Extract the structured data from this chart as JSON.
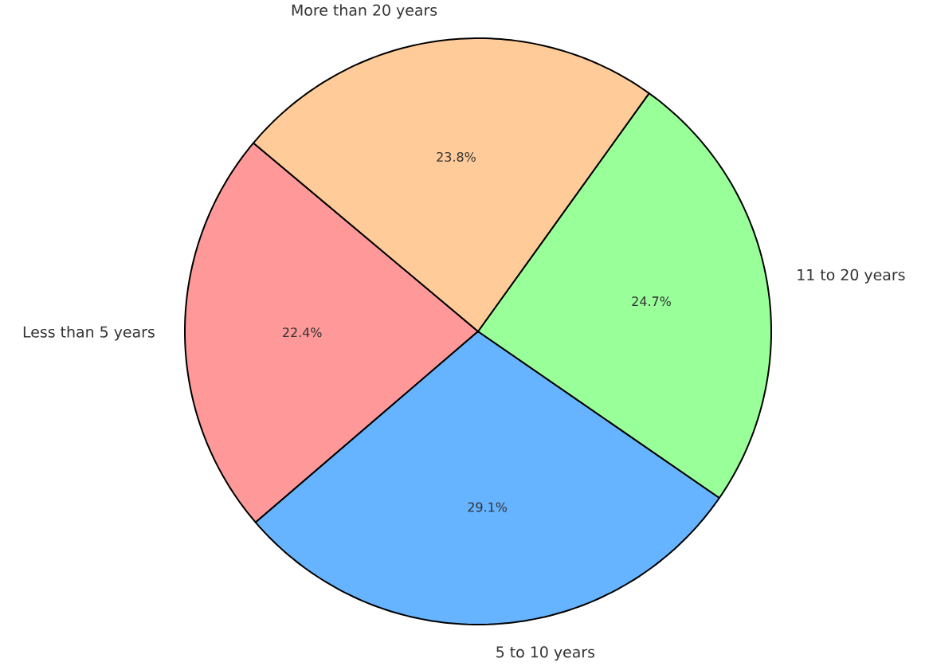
{
  "chart_data": {
    "type": "pie",
    "categories": [
      "Less than 5 years",
      "5 to 10 years",
      "11 to 20 years",
      "More than 20 years"
    ],
    "values": [
      22.4,
      29.1,
      24.7,
      23.8
    ],
    "colors": [
      "#ff9999",
      "#66b3ff",
      "#99ff99",
      "#ffcc99"
    ],
    "value_labels": [
      "22.4%",
      "29.1%",
      "24.7%",
      "23.8%"
    ]
  }
}
